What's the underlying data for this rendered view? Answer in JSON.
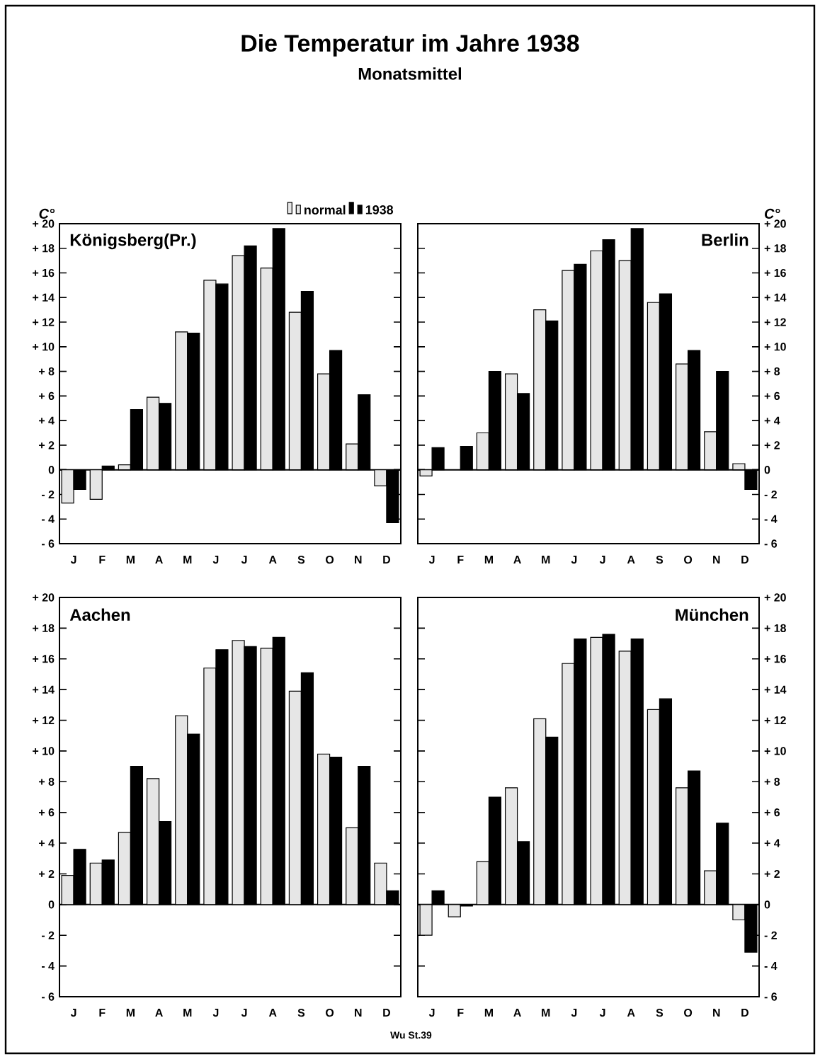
{
  "chart_data": [
    {
      "type": "bar",
      "title": "Die Temperatur im Jahre 1938",
      "subtitle": "Monatsmittel",
      "ylabel": "C°",
      "annotations": [
        "Königsberg(Pr.)"
      ],
      "legend": "top right",
      "categories": [
        "J",
        "F",
        "M",
        "A",
        "M",
        "J",
        "J",
        "A",
        "S",
        "O",
        "N",
        "D"
      ],
      "ylim": [
        -6,
        20
      ],
      "yticks": [
        {
          "value": -6,
          "label": "- 6"
        },
        {
          "value": -4,
          "label": "- 4"
        },
        {
          "value": -2,
          "label": "- 2"
        },
        0,
        {
          "value": 2,
          "label": "+ 2"
        },
        {
          "value": 4,
          "label": "+ 4"
        },
        {
          "value": 6,
          "label": "+ 6"
        },
        {
          "value": 8,
          "label": "+ 8"
        },
        {
          "value": 10,
          "label": "+ 10"
        },
        {
          "value": 12,
          "label": "+ 12"
        },
        {
          "value": 14,
          "label": "+ 14"
        },
        {
          "value": 16,
          "label": "+ 16"
        },
        {
          "value": 18,
          "label": "+ 18"
        },
        {
          "value": 20,
          "label": "+ 20"
        }
      ],
      "series": [
        {
          "name": "normal",
          "color": "#e6e6e6",
          "values": [
            -2.7,
            -2.4,
            0.4,
            5.9,
            11.2,
            15.4,
            17.4,
            16.4,
            12.8,
            7.8,
            2.1,
            -1.3
          ]
        },
        {
          "name": "1938",
          "color": "#000000",
          "values": [
            -1.6,
            0.3,
            4.9,
            5.4,
            11.1,
            15.1,
            18.2,
            19.6,
            14.5,
            9.7,
            6.1,
            -4.3
          ]
        }
      ]
    },
    {
      "type": "bar",
      "y2label": "C°",
      "annotations": [
        "Berlin"
      ],
      "categories": [
        "J",
        "F",
        "M",
        "A",
        "M",
        "J",
        "J",
        "A",
        "S",
        "O",
        "N",
        "D"
      ],
      "y2lim": [
        -6,
        20
      ],
      "y2ticks": [
        {
          "value": -6,
          "label": "- 6"
        },
        {
          "value": -4,
          "label": "- 4"
        },
        {
          "value": -2,
          "label": "- 2"
        },
        0,
        {
          "value": 2,
          "label": "+ 2"
        },
        {
          "value": 4,
          "label": "+ 4"
        },
        {
          "value": 6,
          "label": "+ 6"
        },
        {
          "value": 8,
          "label": "+ 8"
        },
        {
          "value": 10,
          "label": "+ 10"
        },
        {
          "value": 12,
          "label": "+ 12"
        },
        {
          "value": 14,
          "label": "+ 14"
        },
        {
          "value": 16,
          "label": "+ 16"
        },
        {
          "value": 18,
          "label": "+ 18"
        },
        {
          "value": 20,
          "label": "+ 20"
        }
      ],
      "series": [
        {
          "color": "#e6e6e6",
          "axis": "y2",
          "values": [
            -0.5,
            null,
            3.0,
            7.8,
            13.0,
            16.2,
            17.8,
            17.0,
            13.6,
            8.6,
            3.1,
            0.5
          ]
        },
        {
          "color": "#000000",
          "axis": "y2",
          "values": [
            1.8,
            1.9,
            8.0,
            6.2,
            12.1,
            16.7,
            18.7,
            19.6,
            14.3,
            9.7,
            8.0,
            -1.6
          ]
        }
      ]
    },
    {
      "type": "bar",
      "annotations": [
        "Aachen",
        "Wu St.39"
      ],
      "categories": [
        "J",
        "F",
        "M",
        "A",
        "M",
        "J",
        "J",
        "A",
        "S",
        "O",
        "N",
        "D"
      ],
      "ylim": [
        -6,
        20
      ],
      "yticks": [
        {
          "value": -6,
          "label": "- 6"
        },
        {
          "value": -4,
          "label": "- 4"
        },
        {
          "value": -2,
          "label": "- 2"
        },
        0,
        {
          "value": 2,
          "label": "+ 2"
        },
        {
          "value": 4,
          "label": "+ 4"
        },
        {
          "value": 6,
          "label": "+ 6"
        },
        {
          "value": 8,
          "label": "+ 8"
        },
        {
          "value": 10,
          "label": "+ 10"
        },
        {
          "value": 12,
          "label": "+ 12"
        },
        {
          "value": 14,
          "label": "+ 14"
        },
        {
          "value": 16,
          "label": "+ 16"
        },
        {
          "value": 18,
          "label": "+ 18"
        },
        {
          "value": 20,
          "label": "+ 20"
        }
      ],
      "series": [
        {
          "color": "#e6e6e6",
          "values": [
            1.9,
            2.7,
            4.7,
            8.2,
            12.3,
            15.4,
            17.2,
            16.7,
            13.9,
            9.8,
            5.0,
            2.7
          ]
        },
        {
          "color": "#000000",
          "values": [
            3.6,
            2.9,
            9.0,
            5.4,
            11.1,
            16.6,
            16.8,
            17.4,
            15.1,
            9.6,
            9.0,
            0.9
          ]
        }
      ]
    },
    {
      "type": "bar",
      "annotations": [
        "München"
      ],
      "categories": [
        "J",
        "F",
        "M",
        "A",
        "M",
        "J",
        "J",
        "A",
        "S",
        "O",
        "N",
        "D"
      ],
      "y2lim": [
        -6,
        20
      ],
      "y2ticks": [
        {
          "value": -6,
          "label": "- 6"
        },
        {
          "value": -4,
          "label": "- 4"
        },
        {
          "value": -2,
          "label": "- 2"
        },
        0,
        {
          "value": 2,
          "label": "+ 2"
        },
        {
          "value": 4,
          "label": "+ 4"
        },
        {
          "value": 6,
          "label": "+ 6"
        },
        {
          "value": 8,
          "label": "+ 8"
        },
        {
          "value": 10,
          "label": "+ 10"
        },
        {
          "value": 12,
          "label": "+ 12"
        },
        {
          "value": 14,
          "label": "+ 14"
        },
        {
          "value": 16,
          "label": "+ 16"
        },
        {
          "value": 18,
          "label": "+ 18"
        },
        {
          "value": 20,
          "label": "+ 20"
        }
      ],
      "series": [
        {
          "color": "#e6e6e6",
          "axis": "y2",
          "values": [
            -2.0,
            -0.8,
            2.8,
            7.6,
            12.1,
            15.7,
            17.4,
            16.5,
            12.7,
            7.6,
            2.2,
            -1.0
          ]
        },
        {
          "color": "#000000",
          "axis": "y2",
          "values": [
            0.9,
            -0.1,
            7.0,
            4.1,
            10.9,
            17.3,
            17.6,
            17.3,
            13.4,
            8.7,
            5.3,
            -3.1
          ]
        }
      ]
    }
  ]
}
